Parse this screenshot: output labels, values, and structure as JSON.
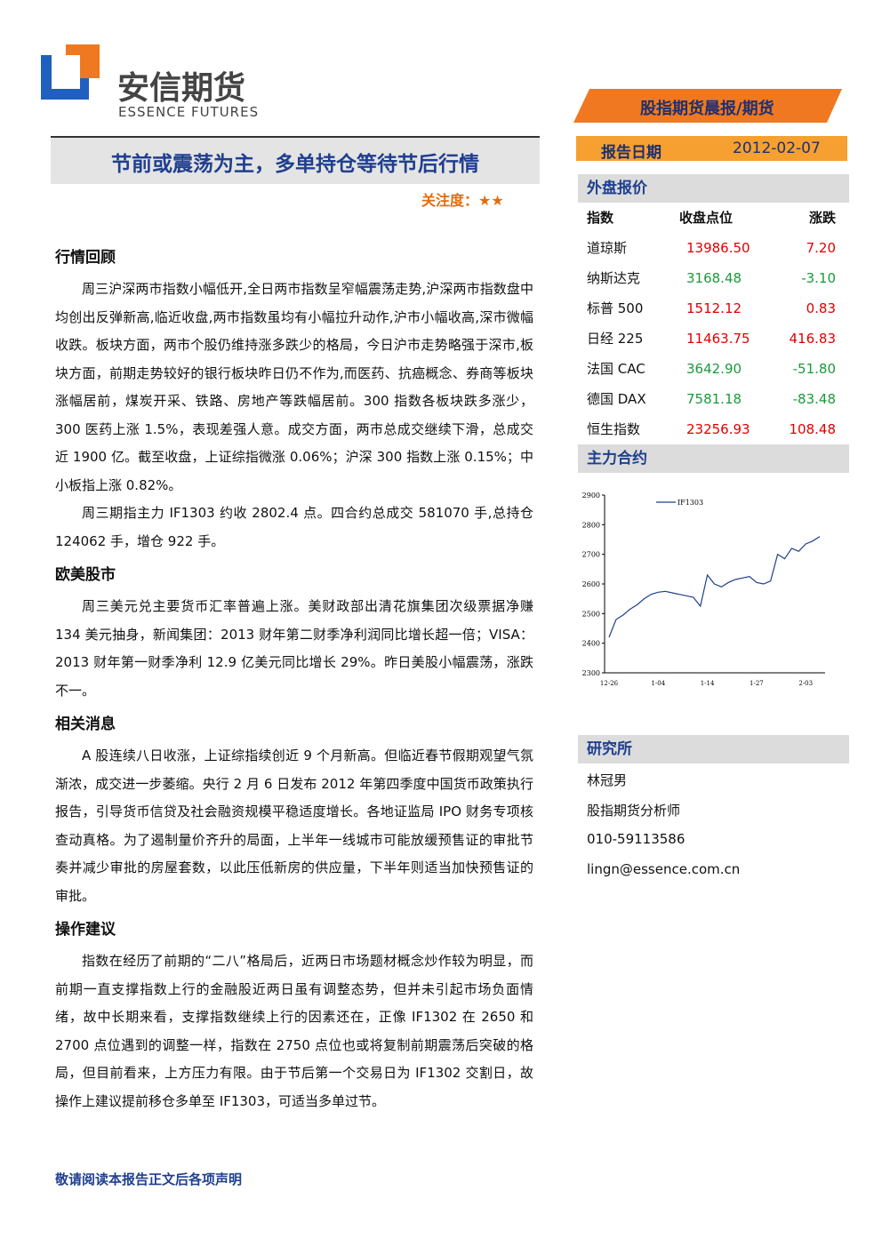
{
  "header": {
    "logo_cn": "安信期货",
    "logo_en": "ESSENCE FUTURES",
    "report_type": "股指期货晨报/期货",
    "date_label": "报告日期",
    "date": "2012-02-07"
  },
  "title": "节前或震荡为主，多单持仓等待节后行情",
  "attention": {
    "label": "关注度：",
    "stars": "★★"
  },
  "sections": [
    {
      "heading": "行情回顾",
      "paragraphs": [
        "周三沪深两市指数小幅低开,全日两市指数呈窄幅震荡走势,沪深两市指数盘中均创出反弹新高,临近收盘,两市指数虽均有小幅拉升动作,沪市小幅收高,深市微幅收跌。板块方面，两市个股仍维持涨多跌少的格局，今日沪市走势略强于深市,板块方面，前期走势较好的银行板块昨日仍不作为,而医药、抗癌概念、券商等板块涨幅居前，煤炭开采、铁路、房地产等跌幅居前。300 指数各板块跌多涨少，300 医药上涨 1.5%，表现差强人意。成交方面，两市总成交继续下滑，总成交近 1900 亿。截至收盘，上证综指微涨 0.06%；沪深 300 指数上涨 0.15%；中小板指上涨 0.82%。",
        "周三期指主力 IF1303 约收 2802.4 点。四合约总成交 581070 手,总持仓 124062 手，增仓 922 手。"
      ]
    },
    {
      "heading": "欧美股市",
      "paragraphs": [
        "周三美元兑主要货币汇率普遍上涨。美财政部出清花旗集团次级票据净赚 134 美元抽身，新闻集团：2013 财年第二财季净利润同比增长超一倍；VISA：2013 财年第一财季净利 12.9 亿美元同比增长 29%。昨日美股小幅震荡，涨跌不一。"
      ]
    },
    {
      "heading": "相关消息",
      "paragraphs": [
        "A 股连续八日收涨，上证综指续创近 9 个月新高。但临近春节假期观望气氛渐浓，成交进一步萎缩。央行 2 月 6 日发布 2012 年第四季度中国货币政策执行报告，引导货币信贷及社会融资规模平稳适度增长。各地证监局 IPO 财务专项核查动真格。为了遏制量价齐升的局面，上半年一线城市可能放缓预售证的审批节奏并减少审批的房屋套数，以此压低新房的供应量，下半年则适当加快预售证的审批。"
      ]
    },
    {
      "heading": "操作建议",
      "paragraphs": [
        "指数在经历了前期的“二八”格局后，近两日市场题材概念炒作较为明显，而前期一直支撑指数上行的金融股近两日虽有调整态势，但并未引起市场负面情绪，故中长期来看，支撑指数继续上行的因素还在，正像 IF1302 在 2650 和 2700 点位遇到的调整一样，指数在 2750 点位也或将复制前期震荡后突破的格局，但目前看来，上方压力有限。由于节后第一个交易日为 IF1302 交割日，故操作上建议提前移仓多单至 IF1303，可适当多单过节。"
      ]
    }
  ],
  "market": {
    "heading": "外盘报价",
    "columns": [
      "指数",
      "收盘点位",
      "涨跌"
    ],
    "rows": [
      [
        "道琼斯",
        "13986.50",
        "7.20"
      ],
      [
        "纳斯达克",
        "3168.48",
        "-3.10"
      ],
      [
        "标普 500",
        "1512.12",
        "0.83"
      ],
      [
        "日经 225",
        "11463.75",
        "416.83"
      ],
      [
        "法国 CAC",
        "3642.90",
        "-51.80"
      ],
      [
        "德国 DAX",
        "7581.18",
        "-83.48"
      ],
      [
        "恒生指数",
        "23256.93",
        "108.48"
      ]
    ]
  },
  "contract": {
    "heading": "主力合约",
    "chart_data": {
      "type": "line",
      "categories": [
        "12-26",
        null,
        null,
        null,
        null,
        null,
        null,
        "1-04",
        null,
        null,
        null,
        null,
        null,
        null,
        "1-14",
        null,
        null,
        null,
        null,
        null,
        null,
        "1-27",
        null,
        null,
        null,
        null,
        null,
        null,
        "2-03",
        null,
        null
      ],
      "series": [
        {
          "name": "IF1303",
          "color": "#1f3f8f",
          "values": [
            2420,
            2480,
            2495,
            2515,
            2530,
            2550,
            2565,
            2572,
            2575,
            2570,
            2565,
            2560,
            2555,
            2525,
            2630,
            2600,
            2590,
            2605,
            2615,
            2620,
            2625,
            2605,
            2600,
            2610,
            2700,
            2685,
            2720,
            2710,
            2735,
            2745,
            2760
          ]
        }
      ],
      "ylim": [
        2300,
        2900
      ],
      "yticks": [
        2300,
        2400,
        2500,
        2600,
        2700,
        2800,
        2900
      ]
    }
  },
  "research": {
    "heading": "研究所",
    "name": "林冠男",
    "role": "股指期货分析师",
    "phone": "010-59113586",
    "email": "lingn@essence.com.cn"
  },
  "footer": "敬请阅读本报告正文后各项声明"
}
